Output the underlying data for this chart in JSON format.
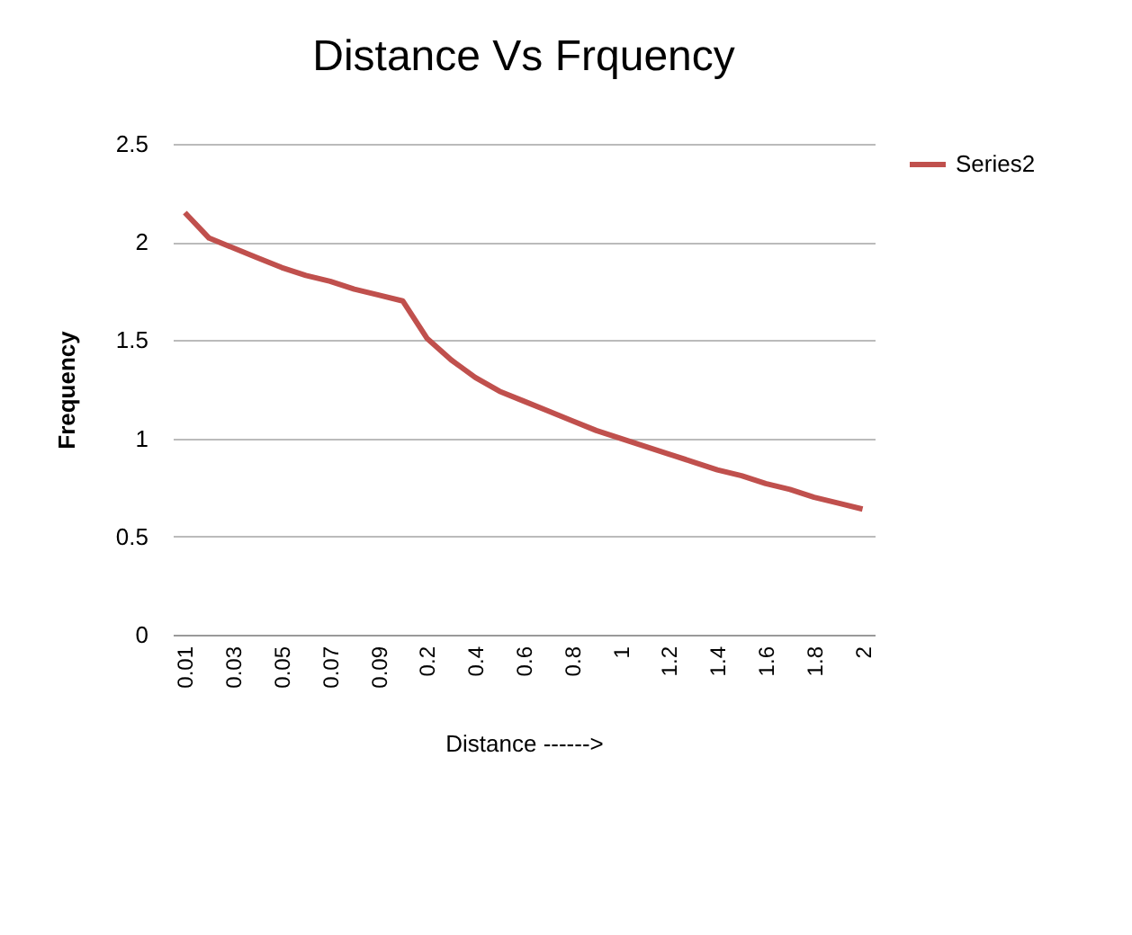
{
  "chart_data": {
    "type": "line",
    "title": "Distance Vs Frquency",
    "xlabel": "Distance ------>",
    "ylabel": "Frequency",
    "categories": [
      "0.01",
      null,
      "0.03",
      null,
      "0.05",
      null,
      "0.07",
      null,
      "0.09",
      null,
      "0.2",
      null,
      "0.4",
      null,
      "0.6",
      null,
      "0.8",
      null,
      "1",
      null,
      "1.2",
      null,
      "1.4",
      null,
      "1.6",
      null,
      "1.8",
      null,
      "2"
    ],
    "series": [
      {
        "name": "Series2",
        "color": "#c0504d",
        "values": [
          2.15,
          2.02,
          1.97,
          1.92,
          1.87,
          1.83,
          1.8,
          1.76,
          1.73,
          1.7,
          1.51,
          1.4,
          1.31,
          1.24,
          1.19,
          1.14,
          1.09,
          1.04,
          1.0,
          0.96,
          0.92,
          0.88,
          0.84,
          0.81,
          0.77,
          0.74,
          0.7,
          0.67,
          0.64
        ]
      }
    ],
    "ylim": [
      0,
      2.5
    ],
    "yticks": [
      0,
      0.5,
      1,
      1.5,
      2,
      2.5
    ],
    "grid": "y",
    "legend": "right",
    "marker": "none",
    "line_style": "solid"
  }
}
